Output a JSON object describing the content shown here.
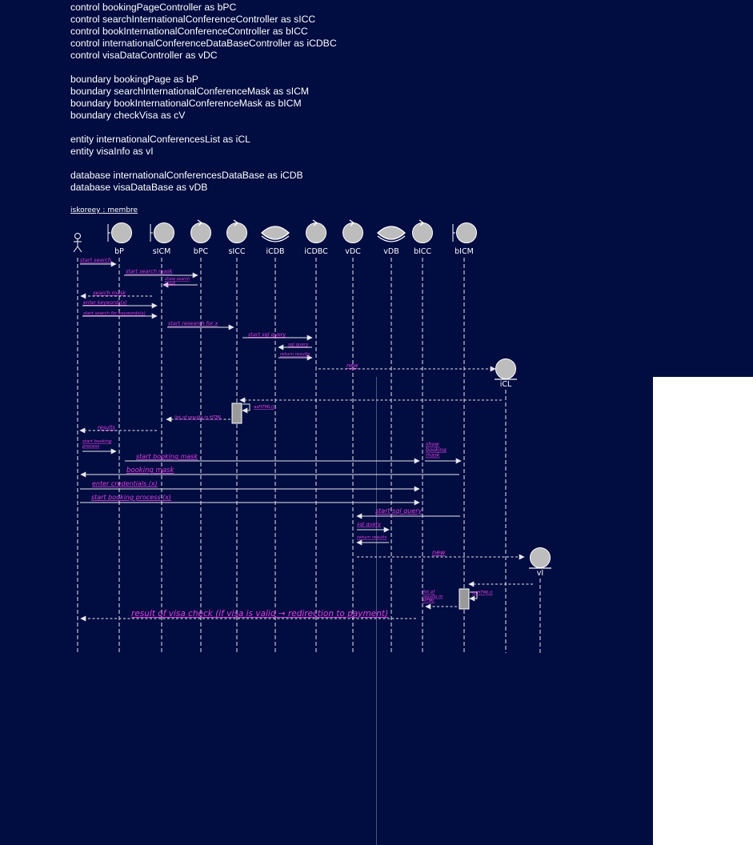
{
  "declarations": {
    "controls": [
      "control bookingPageController as bPC",
      "control searchInternationalConferenceController as sICC",
      "control bookInternationalConferenceController as bICC",
      "control internationalConferenceDataBaseController as iCDBC",
      "control visaDataController as vDC"
    ],
    "boundaries": [
      "boundary bookingPage as bP",
      "boundary searchInternationalConferenceMask as sICM",
      "boundary bookInternationalConferenceMask as bICM",
      "boundary checkVisa as cV"
    ],
    "entities": [
      "entity internationalConferencesList as iCL",
      "entity visaInfo as vI"
    ],
    "databases": [
      "database internationalConferencesDataBase as iCDB",
      "database visaDataBase as vDB"
    ]
  },
  "diagram": {
    "title": "iskoreey : membre",
    "colors": {
      "line": "#e8e8ee",
      "label": "#e040e0",
      "node": "#bdbdbd"
    },
    "participants": [
      {
        "id": "user",
        "type": "actor",
        "label": ""
      },
      {
        "id": "bP",
        "type": "boundary",
        "label": "bP"
      },
      {
        "id": "sICM",
        "type": "boundary",
        "label": "sICM"
      },
      {
        "id": "bPC",
        "type": "control",
        "label": "bPC"
      },
      {
        "id": "sICC",
        "type": "control",
        "label": "sICC"
      },
      {
        "id": "iCDB",
        "type": "database",
        "label": "iCDB"
      },
      {
        "id": "iCDBC",
        "type": "control",
        "label": "iCDBC"
      },
      {
        "id": "vDC",
        "type": "control",
        "label": "vDC"
      },
      {
        "id": "vDB",
        "type": "database",
        "label": "vDB"
      },
      {
        "id": "bICC",
        "type": "control",
        "label": "bICC"
      },
      {
        "id": "bICM",
        "type": "boundary",
        "label": "bICM"
      },
      {
        "id": "iCL",
        "type": "entity",
        "label": "iCL"
      },
      {
        "id": "vI",
        "type": "entity",
        "label": "vI"
      }
    ],
    "messages": [
      {
        "from": "user",
        "to": "bP",
        "label": "start search",
        "style": "solid"
      },
      {
        "from": "bP",
        "to": "bPC",
        "label": "start search mask",
        "style": "solid"
      },
      {
        "from": "bPC",
        "to": "sICM",
        "label": "show search mask",
        "style": "solid"
      },
      {
        "from": "sICM",
        "to": "user",
        "label": "search mask",
        "style": "dashed"
      },
      {
        "from": "user",
        "to": "sICM",
        "label": "enter keywords(x)",
        "style": "solid"
      },
      {
        "from": "user",
        "to": "sICM",
        "label": "start search for keywords(x)",
        "style": "solid"
      },
      {
        "from": "sICM",
        "to": "sICC",
        "label": "start research for x",
        "style": "solid"
      },
      {
        "from": "sICC",
        "to": "iCDBC",
        "label": "start sql query",
        "style": "solid"
      },
      {
        "from": "iCDBC",
        "to": "iCDB",
        "label": "sql query",
        "style": "solid"
      },
      {
        "from": "iCDB",
        "to": "iCDBC",
        "label": "return results",
        "style": "solid"
      },
      {
        "from": "iCDBC",
        "to": "iCL",
        "label": "new",
        "style": "dashed"
      },
      {
        "from": "iCL",
        "to": "sICC",
        "label": "",
        "style": "dashed"
      },
      {
        "from": "sICC",
        "to": "sICC",
        "label": "asHTML()",
        "style": "self"
      },
      {
        "from": "sICC",
        "to": "sICM",
        "label": "list of results in HTML",
        "style": "dashed"
      },
      {
        "from": "sICM",
        "to": "user",
        "label": "results",
        "style": "dashed"
      },
      {
        "from": "user",
        "to": "bP",
        "label": "start booking process",
        "style": "solid"
      },
      {
        "from": "bP",
        "to": "bICC",
        "label": "start booking mask",
        "style": "solid"
      },
      {
        "from": "bICC",
        "to": "bICM",
        "label": "show booking mask",
        "style": "solid"
      },
      {
        "from": "bICM",
        "to": "user",
        "label": "booking mask",
        "style": "solid"
      },
      {
        "from": "user",
        "to": "bICC",
        "label": "enter credentials (x)",
        "style": "solid"
      },
      {
        "from": "user",
        "to": "bICC",
        "label": "start booking process (x)",
        "style": "solid"
      },
      {
        "from": "bICM",
        "to": "vDC",
        "label": "start sql query",
        "style": "solid"
      },
      {
        "from": "vDC",
        "to": "vDB",
        "label": "sql query",
        "style": "solid"
      },
      {
        "from": "vDB",
        "to": "vDC",
        "label": "return results",
        "style": "solid"
      },
      {
        "from": "vDC",
        "to": "vI",
        "label": "new",
        "style": "dashed"
      },
      {
        "from": "vI",
        "to": "bICM",
        "label": "",
        "style": "dashed"
      },
      {
        "from": "bICM",
        "to": "bICM",
        "label": "asHTML()",
        "style": "self"
      },
      {
        "from": "bICM",
        "to": "bICC",
        "label": "list of results in HTML",
        "style": "dashed"
      },
      {
        "from": "bICC",
        "to": "user",
        "label": "result of visa check (if visa is valid → redirection to payment)",
        "style": "dashed"
      }
    ]
  }
}
